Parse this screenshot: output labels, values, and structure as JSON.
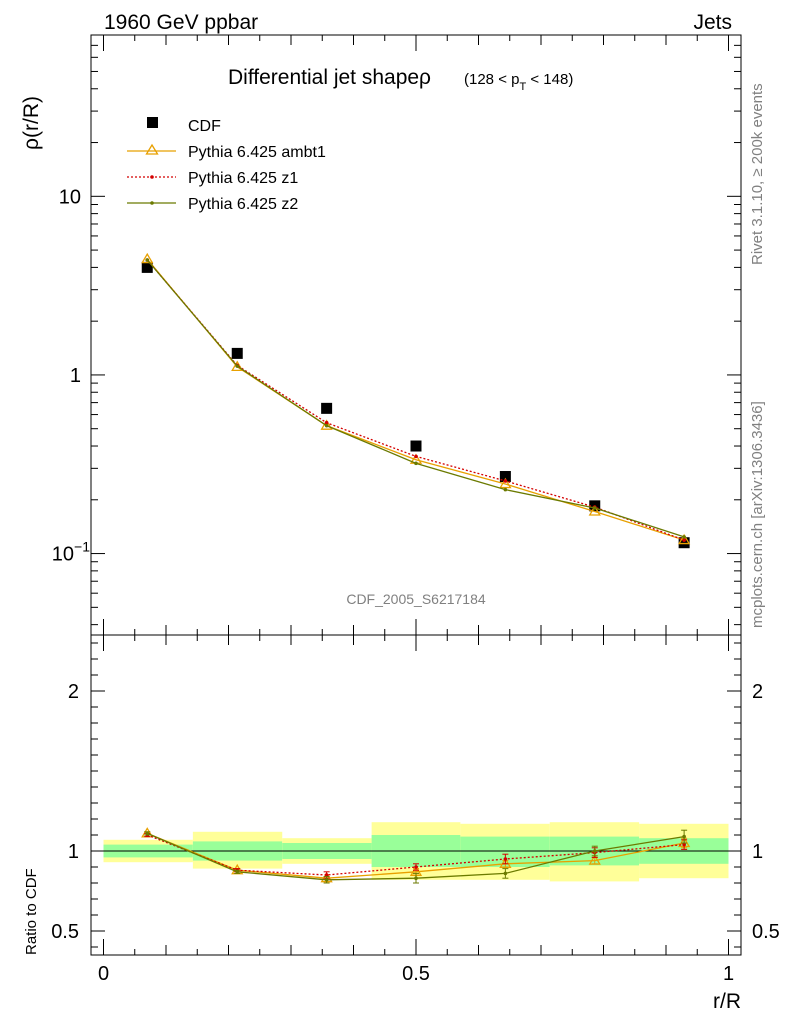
{
  "header": {
    "left": "1960 GeV ppbar",
    "right": "Jets"
  },
  "side": {
    "rivet": "Rivet 3.1.10, ≥ 200k events",
    "mcplots": "mcplots.cern.ch [arXiv:1306.3436]"
  },
  "analysis_id": "CDF_2005_S6217184",
  "colors": {
    "cdf": "#000000",
    "ambt1": "#e8a000",
    "z1": "#d40000",
    "z2": "#6b7a00",
    "band_inner": "#99ff99",
    "band_outer": "#ffff99"
  },
  "chart_data": [
    {
      "type": "line",
      "title": "Differential jet shapeρ",
      "title_suffix": "(128 < p",
      "title_sub": "T",
      "title_end": " < 148)",
      "xlabel": "",
      "ylabel": "ρ(r/R)",
      "yscale": "log",
      "xlim": [
        -0.02,
        1.02
      ],
      "ylim": [
        0.035,
        80
      ],
      "yticks": [
        {
          "value": 10,
          "label": "10"
        },
        {
          "value": 1,
          "label": "1"
        },
        {
          "value": 0.1,
          "label": "10",
          "exp": "−1"
        }
      ],
      "legend_position": "top-left",
      "x": [
        0.07,
        0.214,
        0.357,
        0.5,
        0.643,
        0.786,
        0.929
      ],
      "series": [
        {
          "name": "CDF",
          "marker": "square",
          "values": [
            4.0,
            1.32,
            0.65,
            0.4,
            0.27,
            0.185,
            0.115
          ]
        },
        {
          "name": "Pythia 6.425 ambt1",
          "marker": "triangle",
          "values": [
            4.45,
            1.11,
            0.52,
            0.335,
            0.245,
            0.172,
            0.119
          ]
        },
        {
          "name": "Pythia 6.425 z1",
          "marker": "dot",
          "style": "dotted",
          "values": [
            4.4,
            1.13,
            0.54,
            0.35,
            0.255,
            0.182,
            0.119
          ]
        },
        {
          "name": "Pythia 6.425 z2",
          "marker": "dot",
          "values": [
            4.4,
            1.12,
            0.52,
            0.32,
            0.228,
            0.18,
            0.124
          ]
        }
      ]
    },
    {
      "type": "line",
      "xlabel": "r/R",
      "ylabel": "Ratio to CDF",
      "xlim": [
        -0.02,
        1.02
      ],
      "ylim": [
        0.35,
        2.35
      ],
      "xticks": [
        {
          "value": 0,
          "label": "0"
        },
        {
          "value": 0.5,
          "label": "0.5"
        },
        {
          "value": 1,
          "label": "1"
        }
      ],
      "yticks": [
        {
          "value": 2,
          "label": "2"
        },
        {
          "value": 1,
          "label": "1"
        },
        {
          "value": 0.5,
          "label": "0.5"
        }
      ],
      "x": [
        0.07,
        0.214,
        0.357,
        0.5,
        0.643,
        0.786,
        0.929
      ],
      "bins": [
        [
          0,
          0.143
        ],
        [
          0.143,
          0.286
        ],
        [
          0.286,
          0.429
        ],
        [
          0.429,
          0.571
        ],
        [
          0.571,
          0.714
        ],
        [
          0.714,
          0.857
        ],
        [
          0.857,
          1.0
        ]
      ],
      "band_inner": [
        [
          0.96,
          1.04
        ],
        [
          0.94,
          1.06
        ],
        [
          0.95,
          1.05
        ],
        [
          0.9,
          1.1
        ],
        [
          0.9,
          1.09
        ],
        [
          0.91,
          1.09
        ],
        [
          0.92,
          1.08
        ]
      ],
      "band_outer": [
        [
          0.93,
          1.07
        ],
        [
          0.89,
          1.12
        ],
        [
          0.92,
          1.08
        ],
        [
          0.82,
          1.18
        ],
        [
          0.82,
          1.17
        ],
        [
          0.81,
          1.18
        ],
        [
          0.83,
          1.17
        ]
      ],
      "series": [
        {
          "name": "Pythia 6.425 ambt1",
          "values": [
            1.11,
            0.88,
            0.83,
            0.87,
            0.92,
            0.94,
            1.05
          ],
          "errors": [
            0.01,
            0.01,
            0.01,
            0.02,
            0.02,
            0.02,
            0.03
          ]
        },
        {
          "name": "Pythia 6.425 z1",
          "values": [
            1.1,
            0.88,
            0.85,
            0.9,
            0.95,
            0.99,
            1.04
          ],
          "errors": [
            0.01,
            0.01,
            0.02,
            0.02,
            0.03,
            0.03,
            0.03
          ]
        },
        {
          "name": "Pythia 6.425 z2",
          "values": [
            1.11,
            0.87,
            0.82,
            0.83,
            0.86,
            1.0,
            1.09
          ],
          "errors": [
            0.01,
            0.01,
            0.02,
            0.03,
            0.03,
            0.03,
            0.04
          ]
        }
      ]
    }
  ]
}
